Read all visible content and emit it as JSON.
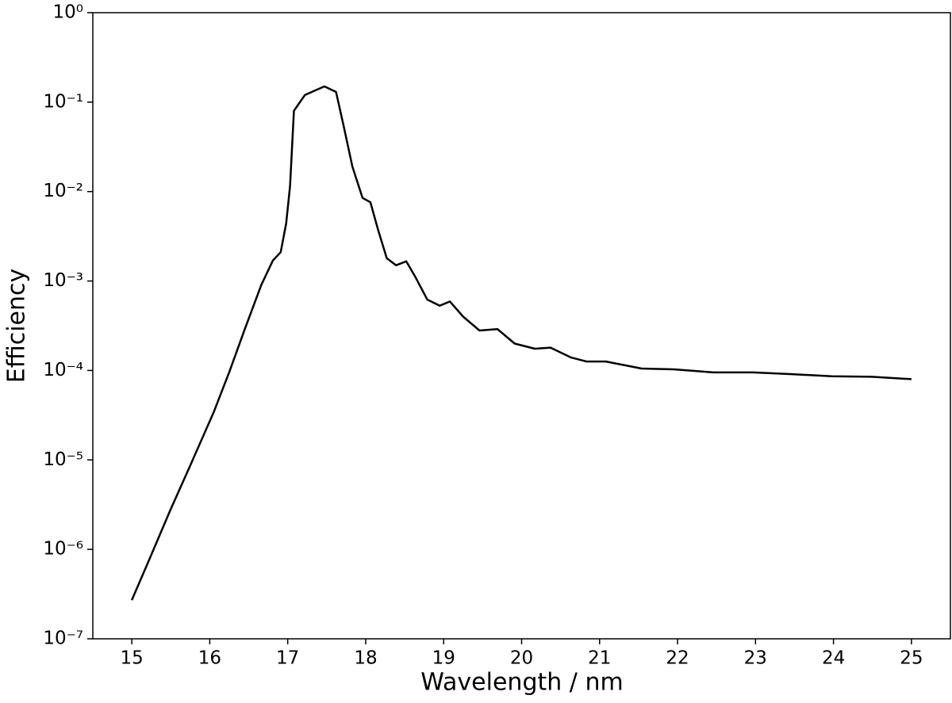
{
  "chart_data": {
    "type": "line",
    "xlabel": "Wavelength / nm",
    "ylabel": "Efficiency",
    "x": [
      15.0,
      15.23,
      15.49,
      15.74,
      16.05,
      16.25,
      16.45,
      16.66,
      16.81,
      16.91,
      16.98,
      17.03,
      17.08,
      17.22,
      17.47,
      17.62,
      17.72,
      17.83,
      17.96,
      18.06,
      18.16,
      18.27,
      18.39,
      18.52,
      18.64,
      18.79,
      18.95,
      19.08,
      19.25,
      19.46,
      19.69,
      19.91,
      20.17,
      20.37,
      20.63,
      20.83,
      21.08,
      21.54,
      21.95,
      22.46,
      22.97,
      23.47,
      23.98,
      24.49,
      25.0
    ],
    "series": [
      {
        "color": "#000000",
        "values": [
          2.7e-07,
          7.9e-07,
          2.7e-06,
          8.3e-06,
          3.4e-05,
          9.6e-05,
          0.00029,
          0.0009,
          0.0017,
          0.0021,
          0.0044,
          0.0115,
          0.08,
          0.12,
          0.15,
          0.13,
          0.053,
          0.019,
          0.0085,
          0.0076,
          0.0037,
          0.0018,
          0.0015,
          0.00166,
          0.0011,
          0.00062,
          0.00053,
          0.00059,
          0.0004,
          0.00028,
          0.00029,
          0.0002,
          0.000175,
          0.00018,
          0.00014,
          0.000126,
          0.000126,
          0.000105,
          0.000103,
          9.5e-05,
          9.5e-05,
          9.1e-05,
          8.6e-05,
          8.5e-05,
          8e-05
        ]
      }
    ],
    "xlim": [
      14.5,
      25.5
    ],
    "xticks": [
      15,
      16,
      17,
      18,
      19,
      20,
      21,
      22,
      23,
      24,
      25
    ],
    "ylim": [
      1e-07,
      1
    ],
    "ylog": true,
    "yticks": [
      {
        "value": 1e-07,
        "label": "10⁻⁷"
      },
      {
        "value": 1e-06,
        "label": "10⁻⁶"
      },
      {
        "value": 1e-05,
        "label": "10⁻⁵"
      },
      {
        "value": 0.0001,
        "label": "10⁻⁴"
      },
      {
        "value": 0.001,
        "label": "10⁻³"
      },
      {
        "value": 0.01,
        "label": "10⁻²"
      },
      {
        "value": 0.1,
        "label": "10⁻¹"
      },
      {
        "value": 1,
        "label": "10⁰"
      }
    ]
  }
}
